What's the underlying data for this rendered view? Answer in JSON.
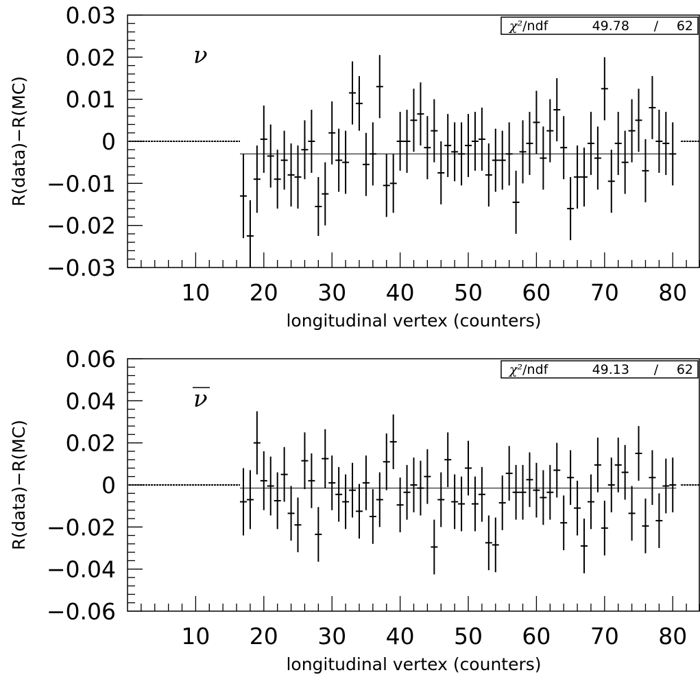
{
  "chart_data": [
    {
      "type": "scatter",
      "title": "",
      "xlabel": "longitudinal vertex (counters)",
      "ylabel": "R(data)−R(MC)",
      "xlim": [
        0,
        84
      ],
      "ylim": [
        -0.03,
        0.03
      ],
      "x_ticks": [
        10,
        20,
        30,
        40,
        50,
        60,
        70,
        80
      ],
      "y_ticks": [
        -0.03,
        -0.02,
        -0.01,
        0,
        0.01,
        0.02,
        0.03
      ],
      "y_tick_labels": [
        "−0.03",
        "−0.02",
        "−0.01",
        "0",
        "0.01",
        "0.02",
        "0.03"
      ],
      "annotation": "ν",
      "annotation_overline": false,
      "stats": {
        "label": "χ²/ndf",
        "chi2": "49.78",
        "slash": "/",
        "ndf": "62"
      },
      "fit_constant": -0.003,
      "dashed_zero_regions": [
        [
          0,
          16.5
        ],
        [
          81,
          84
        ]
      ],
      "series": [
        {
          "x": [
            17,
            18,
            19,
            20,
            21,
            22,
            23,
            24,
            25,
            26,
            27,
            28,
            29,
            30,
            31,
            32,
            33,
            34,
            35,
            36,
            37,
            38,
            39,
            40,
            41,
            42,
            43,
            44,
            45,
            46,
            47,
            48,
            49,
            50,
            51,
            52,
            53,
            54,
            55,
            56,
            57,
            58,
            59,
            60,
            61,
            62,
            63,
            64,
            65,
            66,
            67,
            68,
            69,
            70,
            71,
            72,
            73,
            74,
            75,
            76,
            77,
            78,
            79,
            80
          ],
          "y": [
            -0.013,
            -0.0225,
            -0.009,
            0.0005,
            -0.0035,
            -0.009,
            -0.0045,
            -0.008,
            -0.0085,
            -0.002,
            0.0,
            -0.0155,
            -0.0125,
            0.002,
            -0.0045,
            -0.005,
            0.0115,
            0.009,
            -0.0055,
            -0.003,
            0.013,
            -0.0105,
            -0.01,
            0.0,
            0.0,
            0.005,
            0.0065,
            -0.0015,
            0.0025,
            -0.0075,
            -0.001,
            -0.0025,
            -0.003,
            -0.001,
            0.0,
            0.0005,
            -0.008,
            -0.0045,
            -0.0045,
            -0.003,
            -0.0145,
            -0.0025,
            -0.0005,
            0.0045,
            -0.004,
            0.0025,
            0.0075,
            -0.0015,
            -0.016,
            -0.0085,
            -0.0085,
            -0.0005,
            -0.004,
            0.0125,
            -0.0095,
            -0.0005,
            -0.005,
            0.0025,
            0.005,
            -0.007,
            0.008,
            0.0,
            -0.0005,
            -0.003
          ],
          "err": [
            0.01,
            0.0085,
            0.008,
            0.008,
            0.0075,
            0.007,
            0.007,
            0.0075,
            0.0075,
            0.007,
            0.0075,
            0.007,
            0.0075,
            0.0075,
            0.0075,
            0.0075,
            0.0075,
            0.0065,
            0.0075,
            0.0075,
            0.0075,
            0.0075,
            0.007,
            0.007,
            0.0075,
            0.0075,
            0.0075,
            0.0075,
            0.0075,
            0.0075,
            0.0075,
            0.007,
            0.0075,
            0.0075,
            0.007,
            0.0075,
            0.0075,
            0.0075,
            0.007,
            0.0075,
            0.0075,
            0.0075,
            0.0075,
            0.0075,
            0.0075,
            0.0075,
            0.0075,
            0.0075,
            0.0075,
            0.0075,
            0.007,
            0.0075,
            0.0075,
            0.0075,
            0.0075,
            0.0075,
            0.0075,
            0.0075,
            0.0075,
            0.0075,
            0.0075,
            0.0075,
            0.0075,
            0.0075
          ]
        }
      ]
    },
    {
      "type": "scatter",
      "title": "",
      "xlabel": "longitudinal vertex (counters)",
      "ylabel": "R(data)−R(MC)",
      "xlim": [
        0,
        84
      ],
      "ylim": [
        -0.06,
        0.06
      ],
      "x_ticks": [
        10,
        20,
        30,
        40,
        50,
        60,
        70,
        80
      ],
      "y_ticks": [
        -0.06,
        -0.04,
        -0.02,
        0,
        0.02,
        0.04,
        0.06
      ],
      "y_tick_labels": [
        "−0.06",
        "−0.04",
        "−0.02",
        "0",
        "0.02",
        "0.04",
        "0.06"
      ],
      "annotation": "ν",
      "annotation_overline": true,
      "stats": {
        "label": "χ²/ndf",
        "chi2": "49.13",
        "slash": "/",
        "ndf": "62"
      },
      "fit_constant": -0.0015,
      "dashed_zero_regions": [
        [
          0,
          16.5
        ],
        [
          81,
          84
        ]
      ],
      "series": [
        {
          "x": [
            17,
            18,
            19,
            20,
            21,
            22,
            23,
            24,
            25,
            26,
            27,
            28,
            29,
            30,
            31,
            32,
            33,
            34,
            35,
            36,
            37,
            38,
            39,
            40,
            41,
            42,
            43,
            44,
            45,
            46,
            47,
            48,
            49,
            50,
            51,
            52,
            53,
            54,
            55,
            56,
            57,
            58,
            59,
            60,
            61,
            62,
            63,
            64,
            65,
            66,
            67,
            68,
            69,
            70,
            71,
            72,
            73,
            74,
            75,
            76,
            77,
            78,
            79,
            80
          ],
          "y": [
            -0.008,
            -0.007,
            0.02,
            0.002,
            -0.0005,
            -0.0075,
            0.005,
            -0.0135,
            -0.019,
            0.0115,
            0.002,
            -0.0235,
            0.0125,
            0.001,
            -0.0045,
            -0.008,
            -0.0025,
            -0.0125,
            0.001,
            -0.015,
            -0.007,
            0.011,
            0.0205,
            -0.0095,
            -0.0035,
            0.0,
            -0.0015,
            0.004,
            -0.0295,
            -0.007,
            0.012,
            -0.008,
            -0.009,
            0.008,
            -0.009,
            -0.0045,
            -0.0275,
            -0.0285,
            -0.0085,
            0.0055,
            -0.0035,
            -0.0035,
            0.0025,
            -0.0025,
            -0.006,
            -0.0035,
            0.007,
            -0.018,
            0.0035,
            -0.011,
            -0.029,
            -0.008,
            0.0095,
            -0.0205,
            0.0,
            0.0095,
            0.006,
            -0.0135,
            0.015,
            -0.0195,
            0.0035,
            -0.017,
            -0.0005,
            0.0
          ],
          "err": [
            0.016,
            0.014,
            0.015,
            0.014,
            0.014,
            0.0135,
            0.013,
            0.013,
            0.013,
            0.0135,
            0.013,
            0.013,
            0.014,
            0.013,
            0.013,
            0.013,
            0.013,
            0.013,
            0.013,
            0.013,
            0.013,
            0.0135,
            0.013,
            0.013,
            0.013,
            0.013,
            0.013,
            0.013,
            0.013,
            0.013,
            0.013,
            0.013,
            0.013,
            0.013,
            0.013,
            0.013,
            0.013,
            0.013,
            0.013,
            0.013,
            0.013,
            0.013,
            0.013,
            0.013,
            0.013,
            0.013,
            0.013,
            0.013,
            0.013,
            0.013,
            0.013,
            0.013,
            0.013,
            0.013,
            0.013,
            0.013,
            0.013,
            0.013,
            0.013,
            0.013,
            0.013,
            0.013,
            0.013,
            0.013
          ]
        }
      ]
    }
  ]
}
